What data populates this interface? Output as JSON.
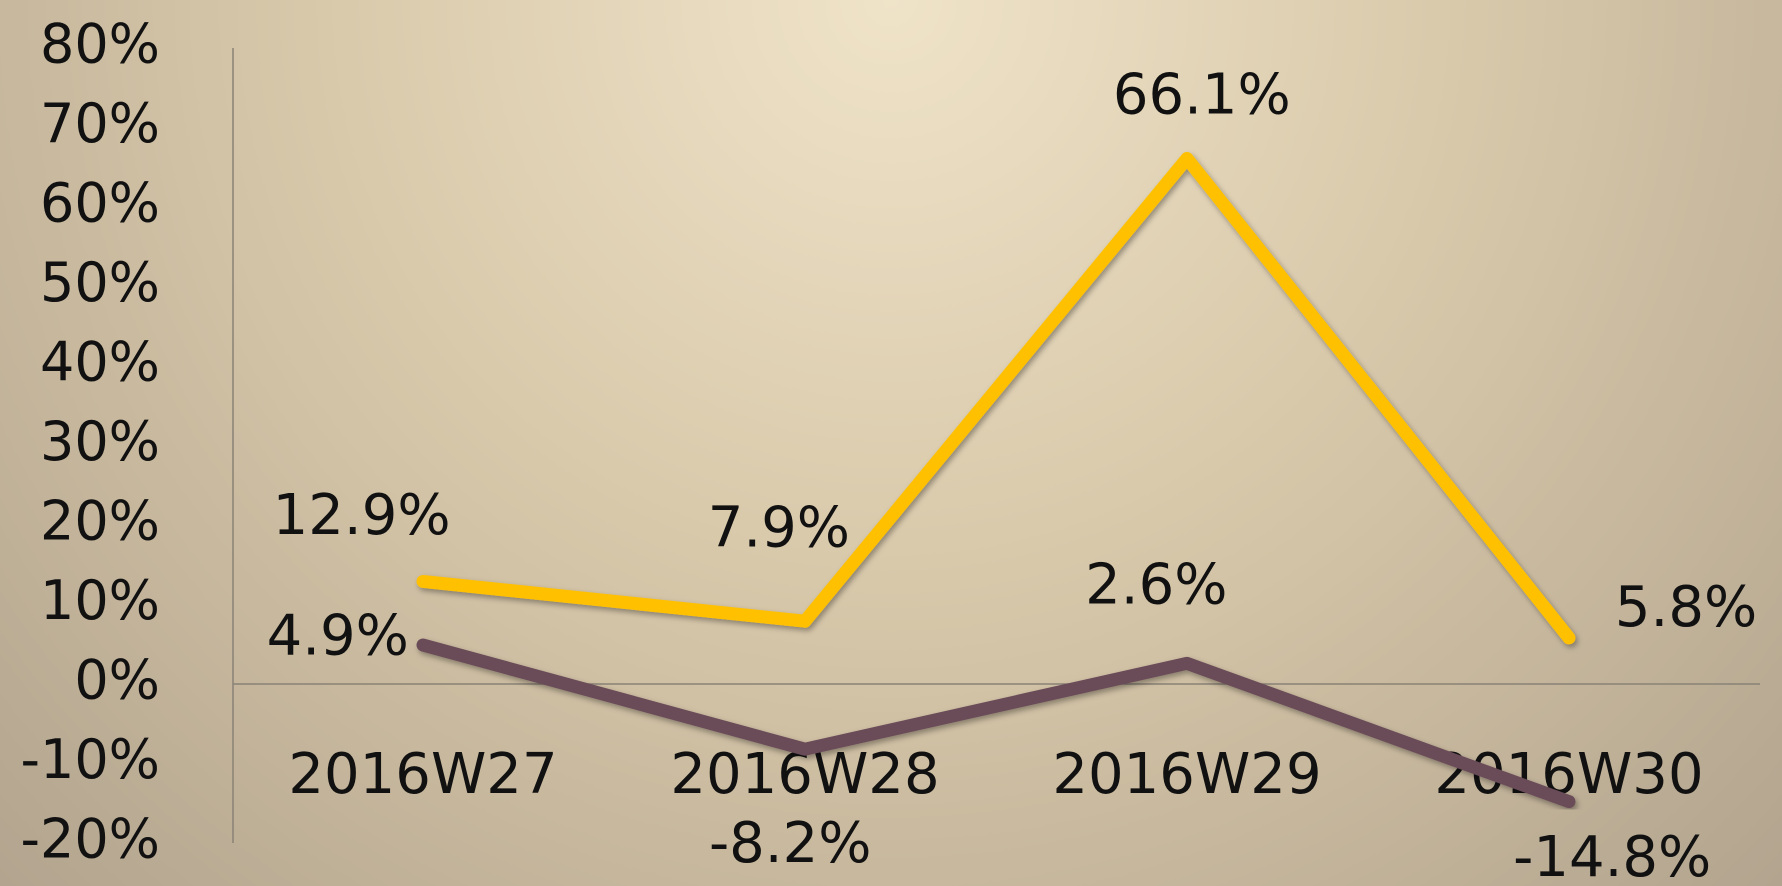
{
  "chart_data": {
    "type": "line",
    "categories": [
      "2016W27",
      "2016W28",
      "2016W29",
      "2016W30"
    ],
    "series": [
      {
        "color": "#ffc000",
        "values": [
          12.9,
          7.9,
          66.1,
          5.8
        ],
        "value_labels": [
          "12.9%",
          "7.9%",
          "66.1%",
          "5.8%"
        ]
      },
      {
        "color": "#6b4c58",
        "values": [
          4.9,
          -8.2,
          2.6,
          -14.8
        ],
        "value_labels": [
          "4.9%",
          "-8.2%",
          "2.6%",
          "-14.8%"
        ]
      }
    ],
    "ylim": [
      -20,
      80
    ],
    "yticks": [
      {
        "value": -20,
        "label": "-20%"
      },
      {
        "value": -10,
        "label": "-10%"
      },
      {
        "value": 0,
        "label": "0%"
      },
      {
        "value": 10,
        "label": "10%"
      },
      {
        "value": 20,
        "label": "20%"
      },
      {
        "value": 30,
        "label": "30%"
      },
      {
        "value": 40,
        "label": "40%"
      },
      {
        "value": 50,
        "label": "50%"
      },
      {
        "value": 60,
        "label": "60%"
      },
      {
        "value": 70,
        "label": "70%"
      },
      {
        "value": 80,
        "label": "80%"
      }
    ],
    "grid": false
  }
}
